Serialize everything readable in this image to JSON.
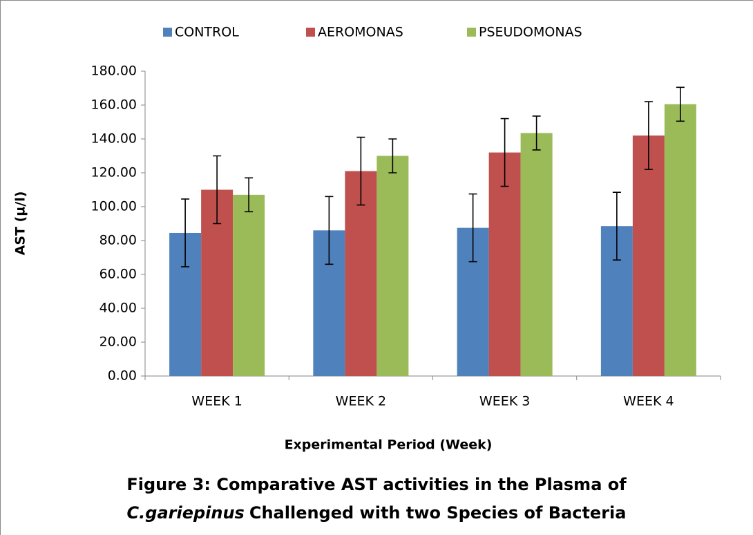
{
  "chart_data": {
    "type": "bar",
    "title": [
      "Figure 3: Comparative AST activities in the Plasma of",
      "C.gariepinus",
      "Challenged with two Species of Bacteria"
    ],
    "xlabel": "Experimental Period (Week)",
    "ylabel": "AST (µ/l)",
    "categories": [
      "WEEK 1",
      "WEEK 2",
      "WEEK 3",
      "WEEK 4"
    ],
    "series": [
      {
        "name": "CONTROL",
        "color": "#4f81bd",
        "values": [
          84.5,
          86,
          87.5,
          88.5
        ],
        "errors": [
          20,
          20,
          20,
          20
        ]
      },
      {
        "name": "AEROMONAS",
        "color": "#c0504d",
        "values": [
          110,
          121,
          132,
          142
        ],
        "errors": [
          20,
          20,
          20,
          20
        ]
      },
      {
        "name": "PSEUDOMONAS",
        "color": "#9bbb59",
        "values": [
          107,
          130,
          143.5,
          160.5
        ],
        "errors": [
          10,
          10,
          10,
          10
        ]
      }
    ],
    "ylim": [
      0,
      180
    ],
    "yticks": [
      {
        "value": 0,
        "label": "0.00"
      },
      {
        "value": 20,
        "label": "20.00"
      },
      {
        "value": 40,
        "label": "40.00"
      },
      {
        "value": 60,
        "label": "60.00"
      },
      {
        "value": 80,
        "label": "80.00"
      },
      {
        "value": 100,
        "label": "100.00"
      },
      {
        "value": 120,
        "label": "120.00"
      },
      {
        "value": 140,
        "label": "140.00"
      },
      {
        "value": 160,
        "label": "160.00"
      },
      {
        "value": 180,
        "label": "180.00"
      }
    ],
    "legend": "top"
  }
}
